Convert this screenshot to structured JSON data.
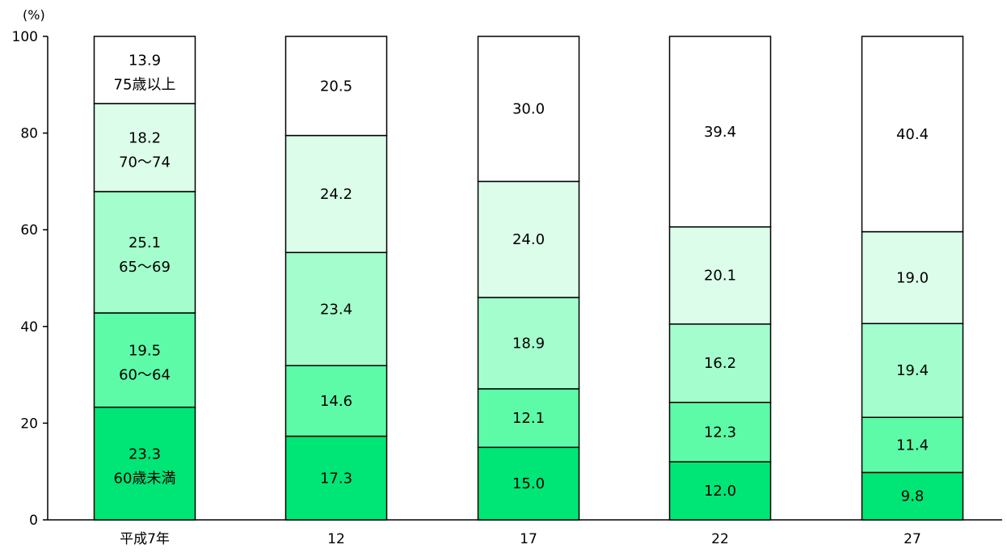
{
  "chart_data": {
    "type": "bar",
    "stacked": true,
    "title": "",
    "xlabel": "",
    "ylabel": "",
    "y_unit": "(%)",
    "ylim": [
      0,
      100
    ],
    "yticks": [
      "0",
      "20",
      "40",
      "60",
      "80",
      "100"
    ],
    "grid": false,
    "categories": [
      "平成7年",
      "12",
      "17",
      "22",
      "27"
    ],
    "series": [
      {
        "name": "60歳未満",
        "color": "#00e676",
        "values": [
          23.3,
          17.3,
          15.0,
          12.0,
          9.8
        ],
        "labels": [
          "23.3",
          "17.3",
          "15.0",
          "12.0",
          "9.8"
        ]
      },
      {
        "name": "60〜64",
        "color": "#5dfaa8",
        "values": [
          19.5,
          14.6,
          12.1,
          12.3,
          11.4
        ],
        "labels": [
          "19.5",
          "14.6",
          "12.1",
          "12.3",
          "11.4"
        ]
      },
      {
        "name": "65〜69",
        "color": "#a4fdcc",
        "values": [
          25.1,
          23.4,
          18.9,
          16.2,
          19.4
        ],
        "labels": [
          "25.1",
          "23.4",
          "18.9",
          "16.2",
          "19.4"
        ]
      },
      {
        "name": "70〜74",
        "color": "#dcfdea",
        "values": [
          18.2,
          24.2,
          24.0,
          20.1,
          19.0
        ],
        "labels": [
          "18.2",
          "24.2",
          "24.0",
          "20.1",
          "19.0"
        ]
      },
      {
        "name": "75歳以上",
        "color": "#ffffff",
        "values": [
          13.9,
          20.5,
          30.0,
          39.4,
          40.4
        ],
        "labels": [
          "13.9",
          "20.5",
          "30.0",
          "39.4",
          "40.4"
        ]
      }
    ]
  }
}
